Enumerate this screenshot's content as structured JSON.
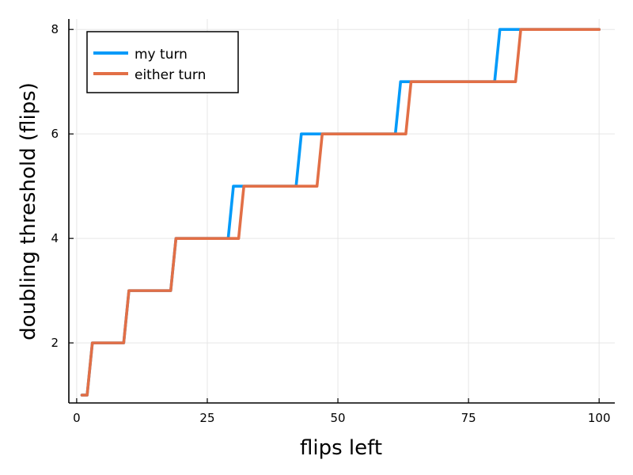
{
  "chart_data": {
    "type": "line",
    "title": "",
    "xlabel": "flips left",
    "ylabel": "doubling threshold (flips)",
    "xlim": [
      -1.5,
      103
    ],
    "ylim": [
      0.85,
      8.2
    ],
    "xticks": [
      0,
      25,
      50,
      75,
      100
    ],
    "yticks": [
      2,
      4,
      6,
      8
    ],
    "grid": true,
    "legend_position": "top-left",
    "series": [
      {
        "name": "my turn",
        "color": "#009af9",
        "x": [
          1,
          2,
          3,
          9,
          10,
          18,
          19,
          29,
          30,
          42,
          43,
          61,
          62,
          80,
          81,
          100
        ],
        "y": [
          1,
          1,
          2,
          2,
          3,
          3,
          4,
          4,
          5,
          5,
          6,
          6,
          7,
          7,
          8,
          8
        ]
      },
      {
        "name": "either turn",
        "color": "#e26f46",
        "x": [
          1,
          2,
          3,
          9,
          10,
          18,
          19,
          31,
          32,
          46,
          47,
          63,
          64,
          84,
          85,
          100
        ],
        "y": [
          1,
          1,
          2,
          2,
          3,
          3,
          4,
          4,
          5,
          5,
          6,
          6,
          7,
          7,
          8,
          8
        ]
      }
    ]
  }
}
